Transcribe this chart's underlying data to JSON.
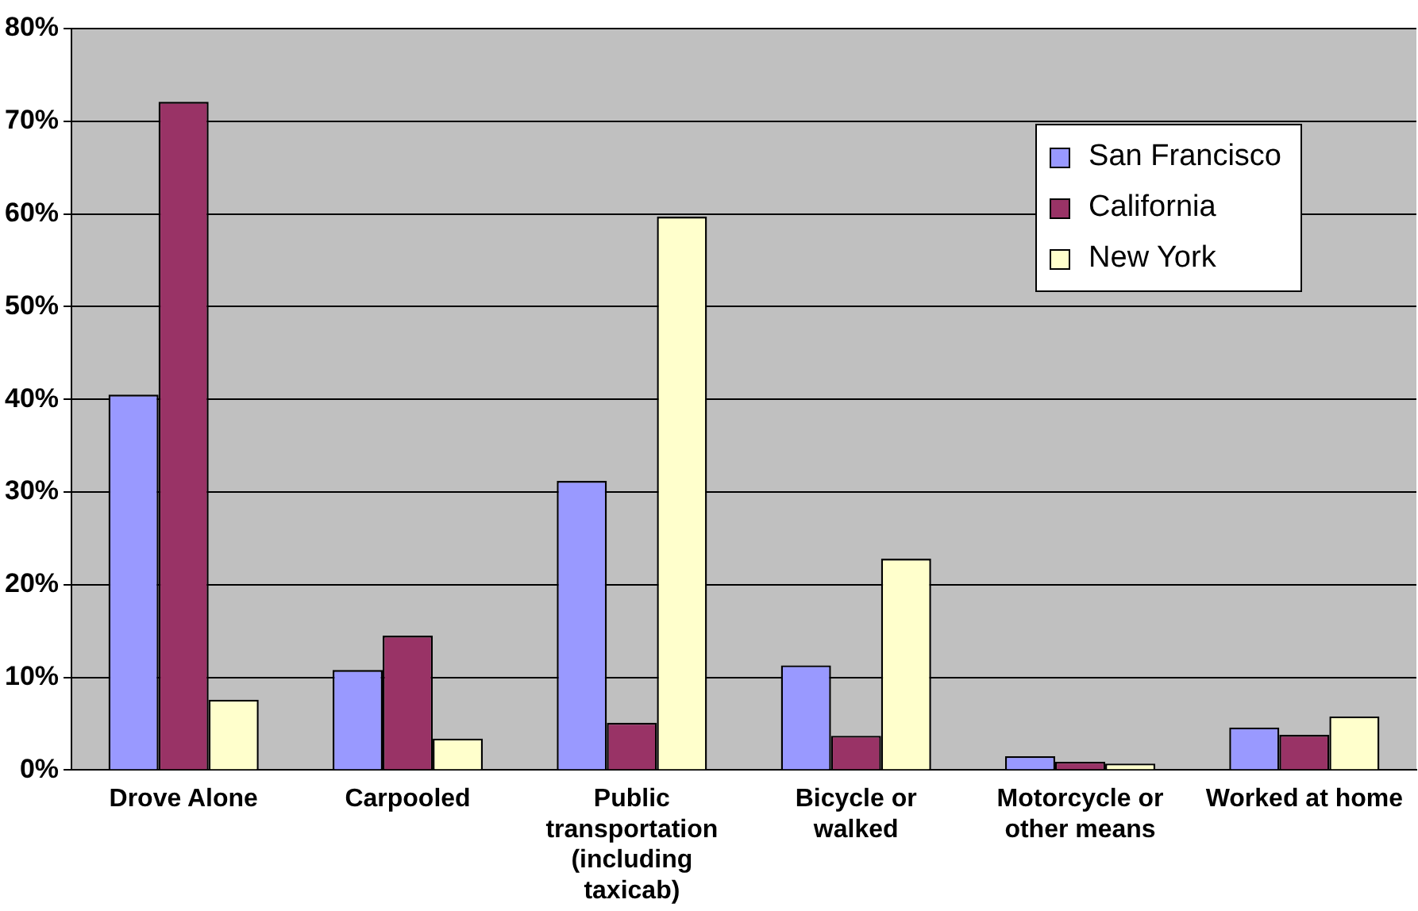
{
  "chart_data": {
    "type": "bar",
    "categories": [
      "Drove Alone",
      "Carpooled",
      "Public transportation (including taxicab)",
      "Bicycle or walked",
      "Motorcycle or other means",
      "Worked at home"
    ],
    "series": [
      {
        "name": "San Francisco",
        "color": "#9999ff",
        "values": [
          40.5,
          10.8,
          31.2,
          11.3,
          1.5,
          4.6
        ]
      },
      {
        "name": "California",
        "color": "#993366",
        "values": [
          72.1,
          14.5,
          5.1,
          3.7,
          0.9,
          3.8
        ]
      },
      {
        "name": "New York",
        "color": "#ffffcc",
        "values": [
          7.6,
          3.4,
          59.7,
          22.8,
          0.7,
          5.8
        ]
      }
    ],
    "ylim": [
      0,
      80
    ],
    "yticks": [
      {
        "value": 0,
        "label": "0%"
      },
      {
        "value": 10,
        "label": "10%"
      },
      {
        "value": 20,
        "label": "20%"
      },
      {
        "value": 30,
        "label": "30%"
      },
      {
        "value": 40,
        "label": "40%"
      },
      {
        "value": 50,
        "label": "50%"
      },
      {
        "value": 60,
        "label": "60%"
      },
      {
        "value": 70,
        "label": "70%"
      },
      {
        "value": 80,
        "label": "80%"
      }
    ],
    "grid": "y",
    "legend": "top right"
  }
}
